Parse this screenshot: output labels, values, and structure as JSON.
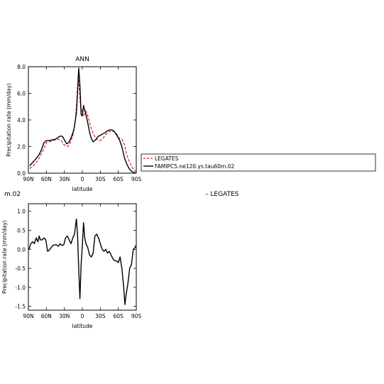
{
  "chart_data": [
    {
      "type": "line",
      "title": "ANN",
      "xlabel": "latitude",
      "ylabel": "Precipitation rate (mm/day)",
      "xlim": [
        90,
        -90
      ],
      "ylim": [
        0,
        8
      ],
      "x_ticks": [
        90,
        60,
        30,
        0,
        -30,
        -60,
        -90
      ],
      "x_tick_labels": [
        "90N",
        "60N",
        "30N",
        "0",
        "30S",
        "60S",
        "90S"
      ],
      "y_ticks": [
        0,
        2,
        4,
        6,
        8
      ],
      "y_tick_labels": [
        "0.0",
        "2.0",
        "4.0",
        "6.0",
        "8.0"
      ],
      "legend": [
        "LEGATES",
        "FAMIPC5.ne120.ys.tau60m.02"
      ],
      "series": [
        {
          "name": "LEGATES",
          "color": "#d62728",
          "dash": "dashed",
          "x": [
            88,
            82,
            75,
            70,
            64,
            60,
            55,
            50,
            45,
            40,
            35,
            32,
            28,
            24,
            20,
            16,
            12,
            9,
            7,
            5,
            3,
            0,
            -2,
            -4,
            -6,
            -10,
            -14,
            -18,
            -22,
            -26,
            -30,
            -34,
            -38,
            -42,
            -46,
            -50,
            -54,
            -58,
            -62,
            -66,
            -70,
            -74,
            -78,
            -82,
            -86,
            -89
          ],
          "y": [
            0.35,
            0.55,
            0.9,
            1.3,
            1.85,
            2.3,
            2.35,
            2.45,
            2.5,
            2.55,
            2.45,
            2.2,
            2.05,
            2.0,
            2.3,
            2.8,
            3.8,
            5.6,
            7.3,
            6.3,
            5.0,
            4.6,
            4.3,
            4.4,
            4.7,
            4.2,
            3.5,
            3.0,
            2.65,
            2.5,
            2.45,
            2.6,
            2.85,
            3.05,
            3.15,
            3.15,
            3.1,
            2.9,
            2.6,
            2.55,
            2.2,
            1.4,
            0.9,
            0.55,
            0.25,
            0.1
          ]
        },
        {
          "name": "FAMIPC5.ne120.ys.tau60m.02",
          "color": "#000000",
          "dash": "solid",
          "x": [
            88,
            83,
            78,
            72,
            68,
            64,
            60,
            55,
            50,
            45,
            40,
            36,
            33,
            30,
            26,
            22,
            18,
            14,
            10,
            8,
            6,
            4,
            2,
            0,
            -2,
            -4,
            -6,
            -9,
            -12,
            -15,
            -18,
            -22,
            -26,
            -30,
            -34,
            -38,
            -42,
            -46,
            -50,
            -54,
            -58,
            -62,
            -66,
            -70,
            -74,
            -78,
            -82,
            -86,
            -89
          ],
          "y": [
            0.55,
            0.8,
            1.05,
            1.4,
            1.8,
            2.3,
            2.45,
            2.45,
            2.5,
            2.55,
            2.7,
            2.8,
            2.75,
            2.5,
            2.2,
            2.35,
            2.75,
            3.3,
            4.5,
            6.0,
            7.9,
            6.6,
            4.4,
            4.3,
            5.1,
            4.7,
            4.4,
            3.8,
            3.1,
            2.6,
            2.35,
            2.5,
            2.75,
            2.85,
            2.95,
            3.05,
            3.2,
            3.25,
            3.25,
            3.1,
            2.8,
            2.5,
            2.0,
            1.2,
            0.7,
            0.35,
            0.15,
            0.05,
            0.0
          ]
        }
      ]
    },
    {
      "type": "line",
      "title": "",
      "title_fragment": "m.02",
      "xlabel": "latitude",
      "ylabel": "Precipitation rate (mm/day)",
      "xlim": [
        90,
        -90
      ],
      "ylim": [
        -1.6,
        1.2
      ],
      "x_ticks": [
        90,
        60,
        30,
        0,
        -30,
        -60,
        -90
      ],
      "x_tick_labels": [
        "90N",
        "60N",
        "30N",
        "0",
        "30S",
        "60S",
        "90S"
      ],
      "y_ticks": [
        -1.5,
        -1.0,
        -0.5,
        0.0,
        0.5,
        1.0
      ],
      "y_tick_labels": [
        "-1.5",
        "-1.0",
        "-0.5",
        "0.0",
        "0.5",
        "1.0"
      ],
      "right_label": "– LEGATES",
      "series": [
        {
          "color": "#000000",
          "dash": "solid",
          "x": [
            89,
            86,
            83,
            80,
            77,
            74,
            72,
            70,
            67,
            64,
            61,
            58,
            55,
            52,
            49,
            46,
            43,
            40,
            37,
            34,
            31,
            28,
            25,
            22,
            19,
            16,
            13,
            10,
            8,
            6,
            4,
            2,
            0,
            -2,
            -4,
            -6,
            -9,
            -12,
            -15,
            -18,
            -21,
            -24,
            -27,
            -30,
            -33,
            -36,
            -39,
            -42,
            -45,
            -48,
            -51,
            -54,
            -57,
            -60,
            -63,
            -66,
            -69,
            -71,
            -73,
            -76,
            -79,
            -82,
            -85,
            -88,
            -89
          ],
          "y": [
            0.0,
            0.15,
            0.2,
            0.15,
            0.3,
            0.2,
            0.35,
            0.25,
            0.25,
            0.3,
            0.25,
            -0.05,
            -0.02,
            0.05,
            0.1,
            0.12,
            0.12,
            0.08,
            0.15,
            0.1,
            0.12,
            0.3,
            0.35,
            0.25,
            0.15,
            0.3,
            0.4,
            0.8,
            0.4,
            -0.5,
            -1.3,
            -0.4,
            0.1,
            0.7,
            0.3,
            0.15,
            0.05,
            -0.15,
            -0.2,
            -0.1,
            0.35,
            0.4,
            0.3,
            0.15,
            0.0,
            -0.05,
            0.0,
            -0.1,
            -0.05,
            -0.15,
            -0.25,
            -0.3,
            -0.3,
            -0.35,
            -0.2,
            -0.5,
            -1.0,
            -1.45,
            -1.2,
            -0.9,
            -0.5,
            -0.4,
            0.0,
            0.05,
            0.1
          ]
        }
      ]
    }
  ]
}
